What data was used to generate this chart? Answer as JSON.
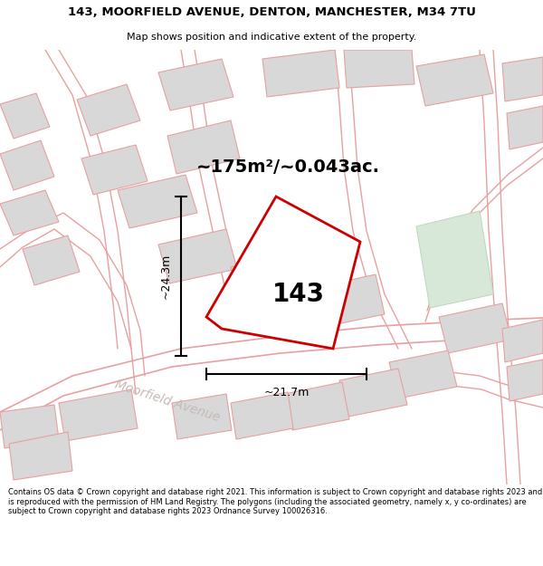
{
  "title_line1": "143, MOORFIELD AVENUE, DENTON, MANCHESTER, M34 7TU",
  "title_line2": "Map shows position and indicative extent of the property.",
  "area_label": "~175m²/~0.043ac.",
  "number_label": "143",
  "dim_height": "~24.3m",
  "dim_width": "~21.7m",
  "street_label": "Moorfield Avenue",
  "footer_text": "Contains OS data © Crown copyright and database right 2021. This information is subject to Crown copyright and database rights 2023 and is reproduced with the permission of HM Land Registry. The polygons (including the associated geometry, namely x, y co-ordinates) are subject to Crown copyright and database rights 2023 Ordnance Survey 100026316.",
  "bg_color": "#f5f0f0",
  "map_bg": "#f2eeee",
  "building_fill": "#d8d8d8",
  "building_edge": "#e8a0a0",
  "property_color": "#cc0000",
  "green_fill": "#d8e8d8",
  "green_edge": "#c0d8c0",
  "dim_line_color": "#000000",
  "text_color": "#000000",
  "street_color": "#c8b8b8",
  "road_line_color": "#e8a0a0"
}
